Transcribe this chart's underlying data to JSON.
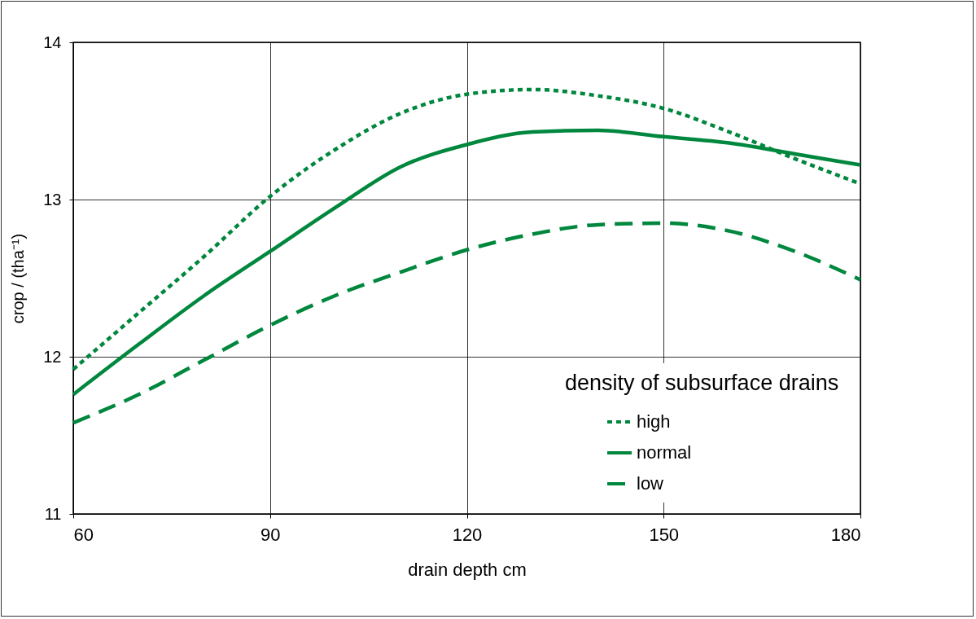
{
  "chart_data": {
    "type": "line",
    "xlabel": "drain depth cm",
    "ylabel": "crop / (tha⁻¹)",
    "legend_title": "density of subsurface drains",
    "x": [
      60,
      70,
      80,
      90,
      100,
      110,
      120,
      130,
      140,
      150,
      160,
      170,
      180
    ],
    "series": [
      {
        "name": "high",
        "color": "#00873e",
        "line_style": "dotted",
        "values": [
          11.92,
          12.28,
          12.64,
          13.02,
          13.32,
          13.55,
          13.67,
          13.7,
          13.66,
          13.58,
          13.43,
          13.26,
          13.1
        ]
      },
      {
        "name": "normal",
        "color": "#00873e",
        "line_style": "solid",
        "values": [
          11.76,
          12.08,
          12.39,
          12.67,
          12.95,
          13.21,
          13.35,
          13.43,
          13.44,
          13.4,
          13.36,
          13.29,
          13.22
        ]
      },
      {
        "name": "low",
        "color": "#00873e",
        "line_style": "dashed",
        "values": [
          11.58,
          11.76,
          11.98,
          12.2,
          12.39,
          12.54,
          12.68,
          12.78,
          12.84,
          12.85,
          12.8,
          12.67,
          12.49
        ]
      }
    ],
    "xlim": [
      60,
      180
    ],
    "xticks": [
      60,
      90,
      120,
      150,
      180
    ],
    "ylim": [
      11,
      14
    ],
    "yticks": [
      11,
      12,
      13,
      14
    ],
    "grid": true,
    "legend": "bottom right",
    "marker": "none"
  }
}
